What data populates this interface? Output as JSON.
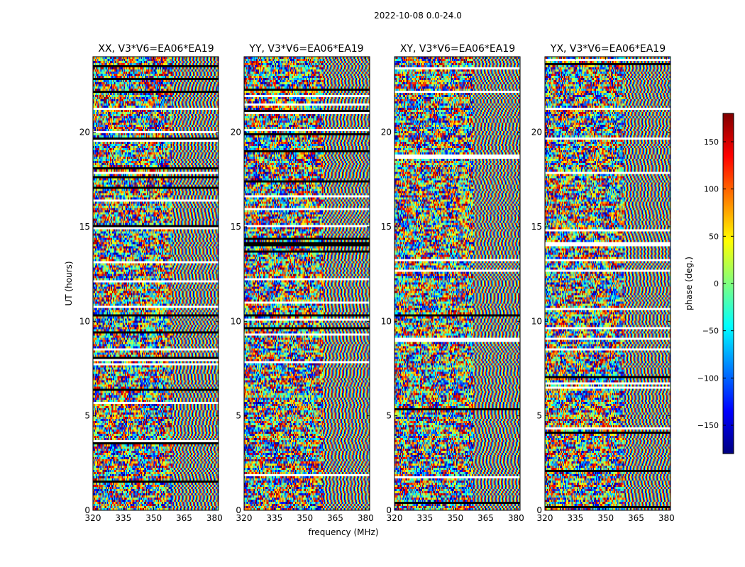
{
  "suptitle": "2022-10-08 0.0-24.0",
  "chart_data": [
    {
      "type": "heatmap",
      "title": "XX, V3*V6=EA06*EA19",
      "xlabel": "",
      "ylabel": "UT (hours)",
      "xlim": [
        320,
        382
      ],
      "ylim": [
        0,
        24
      ],
      "xticks": [
        "320",
        "335",
        "350",
        "365",
        "380"
      ],
      "yticks": [
        "0",
        "5",
        "10",
        "15",
        "20"
      ]
    },
    {
      "type": "heatmap",
      "title": "YY, V3*V6=EA06*EA19",
      "xlabel": "frequency (MHz)",
      "ylabel": "",
      "xlim": [
        320,
        382
      ],
      "ylim": [
        0,
        24
      ],
      "xticks": [
        "320",
        "335",
        "350",
        "365",
        "380"
      ],
      "yticks": [
        "0",
        "5",
        "10",
        "15",
        "20"
      ]
    },
    {
      "type": "heatmap",
      "title": "XY, V3*V6=EA06*EA19",
      "xlabel": "",
      "ylabel": "",
      "xlim": [
        320,
        382
      ],
      "ylim": [
        0,
        24
      ],
      "xticks": [
        "320",
        "335",
        "350",
        "365",
        "380"
      ],
      "yticks": [
        "0",
        "5",
        "10",
        "15",
        "20"
      ]
    },
    {
      "type": "heatmap",
      "title": "YX, V3*V6=EA06*EA19",
      "xlabel": "",
      "ylabel": "",
      "xlim": [
        320,
        382
      ],
      "ylim": [
        0,
        24
      ],
      "xticks": [
        "320",
        "335",
        "350",
        "365",
        "380"
      ],
      "yticks": [
        "0",
        "5",
        "10",
        "15",
        "20"
      ]
    }
  ],
  "colorbar": {
    "label": "phase (deg.)",
    "vmin": -180,
    "vmax": 180,
    "ticks": [
      150,
      100,
      50,
      0,
      -50,
      -100,
      -150
    ],
    "tick_labels": [
      "150",
      "100",
      "50",
      "0",
      "−50",
      "−100",
      "−150"
    ],
    "colormap": "jet",
    "colors": [
      "#00007f",
      "#0000ff",
      "#007fff",
      "#00ffff",
      "#7fff7f",
      "#ffff00",
      "#ff7f00",
      "#ff0000",
      "#7f0000"
    ]
  }
}
